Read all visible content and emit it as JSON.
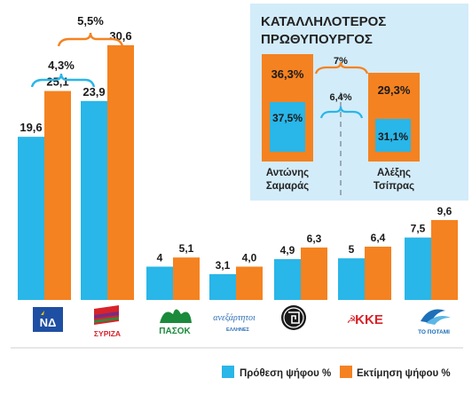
{
  "chart_data": {
    "type": "bar",
    "categories": [
      "ΝΔ",
      "ΣΥΡΙΖΑ",
      "ΠΑΣΟΚ",
      "ΑΝΕΞΑΡΤΗΤΟΙ ΕΛΛΗΝΕΣ",
      "ΧΡΥΣΗ ΑΥΓΗ",
      "ΚΚΕ",
      "ΤΟ ΠΟΤΑΜΙ"
    ],
    "series": [
      {
        "name": "Πρόθεση ψήφου %",
        "color": "#29b6e8",
        "values": [
          19.6,
          23.9,
          4,
          3.1,
          4.9,
          5,
          7.5
        ],
        "labels": [
          "19,6",
          "23,9",
          "4",
          "3,1",
          "4,9",
          "5",
          "7,5"
        ]
      },
      {
        "name": "Εκτίμηση ψήφου %",
        "color": "#f58220",
        "values": [
          25.1,
          30.6,
          5.1,
          4.0,
          6.3,
          6.4,
          9.6
        ],
        "labels": [
          "25,1",
          "30,6",
          "5,1",
          "4,0",
          "6,3",
          "6,4",
          "9,6"
        ]
      }
    ],
    "ylim": [
      0,
      32
    ],
    "grid": false,
    "legend": "bottom-right",
    "annotations": [
      {
        "text": "4,3%",
        "between": "19,6 → 23,9"
      },
      {
        "text": "5,5%",
        "between": "25,1 → 30,6"
      }
    ],
    "logos": {
      "nd": "ΝΔ",
      "syriza": "ΣΥΡΙΖΑ",
      "pasok": "ΠΑΣΟΚ",
      "anel_top": "ανεξάρτητοι",
      "anel_bottom": "ΕΛΛΗΝΕΣ",
      "kke": "ΚΚΕ",
      "potami": "ΤΟ ΠΟΤΑΜΙ"
    },
    "inset": {
      "title_line1": "ΚΑΤΑΛΛΗΛΟΤΕΡΟΣ",
      "title_line2": "ΠΡΩΘΥΠΟΥΡΓΟΣ",
      "candidates": [
        {
          "name_line1": "Αντώνης",
          "name_line2": "Σαμαράς",
          "estimate": 37.5,
          "estimate_label": "37,5%",
          "intention": 36.3,
          "intention_label": "36,3%"
        },
        {
          "name_line1": "Αλέξης",
          "name_line2": "Τσίπρας",
          "estimate": 31.1,
          "estimate_label": "31,1%",
          "intention": 29.3,
          "intention_label": "29,3%"
        }
      ],
      "diff_top": "7%",
      "diff_bottom": "6,4%"
    }
  },
  "legend": {
    "intention_label": "Πρόθεση ψήφου %",
    "estimate_label": "Εκτίμηση ψήφου %"
  }
}
